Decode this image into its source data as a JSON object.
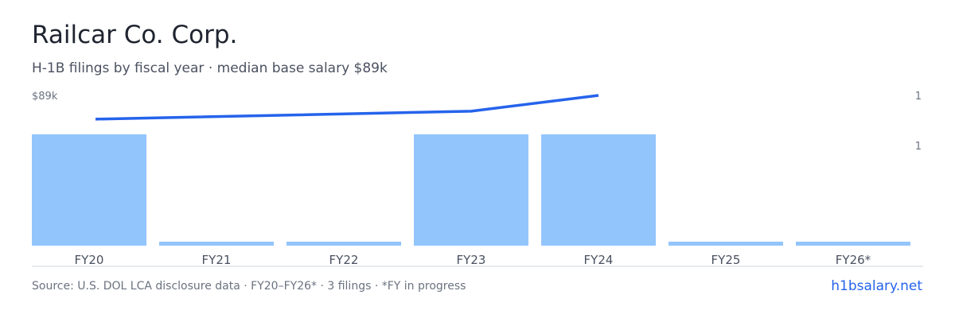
{
  "header": {
    "title": "Railcar Co. Corp.",
    "subtitle": "H-1B filings by fiscal year · median base salary $89k"
  },
  "chart_data": {
    "type": "bar",
    "categories": [
      "FY20",
      "FY21",
      "FY22",
      "FY23",
      "FY24",
      "FY25",
      "FY26*"
    ],
    "series": [
      {
        "type": "bar",
        "axis": "right",
        "values": [
          1,
          0,
          0,
          1,
          1,
          0,
          0
        ]
      },
      {
        "type": "line",
        "axis": "left",
        "values": [
          86000,
          null,
          null,
          87000,
          89000,
          null,
          null
        ]
      }
    ],
    "left_axis": {
      "ticks": [
        {
          "value": 89000,
          "label": "$89k"
        }
      ],
      "ylim": [
        70000,
        89000
      ]
    },
    "right_axis": {
      "ticks": [
        {
          "value": 1.35,
          "label": "1"
        },
        {
          "value": 0.9,
          "label": "1"
        }
      ],
      "ylim": [
        0,
        1.35
      ]
    },
    "grid": false,
    "legend": "none"
  },
  "colors": {
    "bar": "#93c5fd",
    "line": "#2563eb",
    "axis": "#d1d5db",
    "tick": "#6b7280",
    "category": "#4a5160"
  },
  "footer": {
    "source": "Source: U.S. DOL LCA disclosure data · FY20–FY26* · 3 filings · *FY in progress",
    "brand": "h1bsalary.net"
  }
}
